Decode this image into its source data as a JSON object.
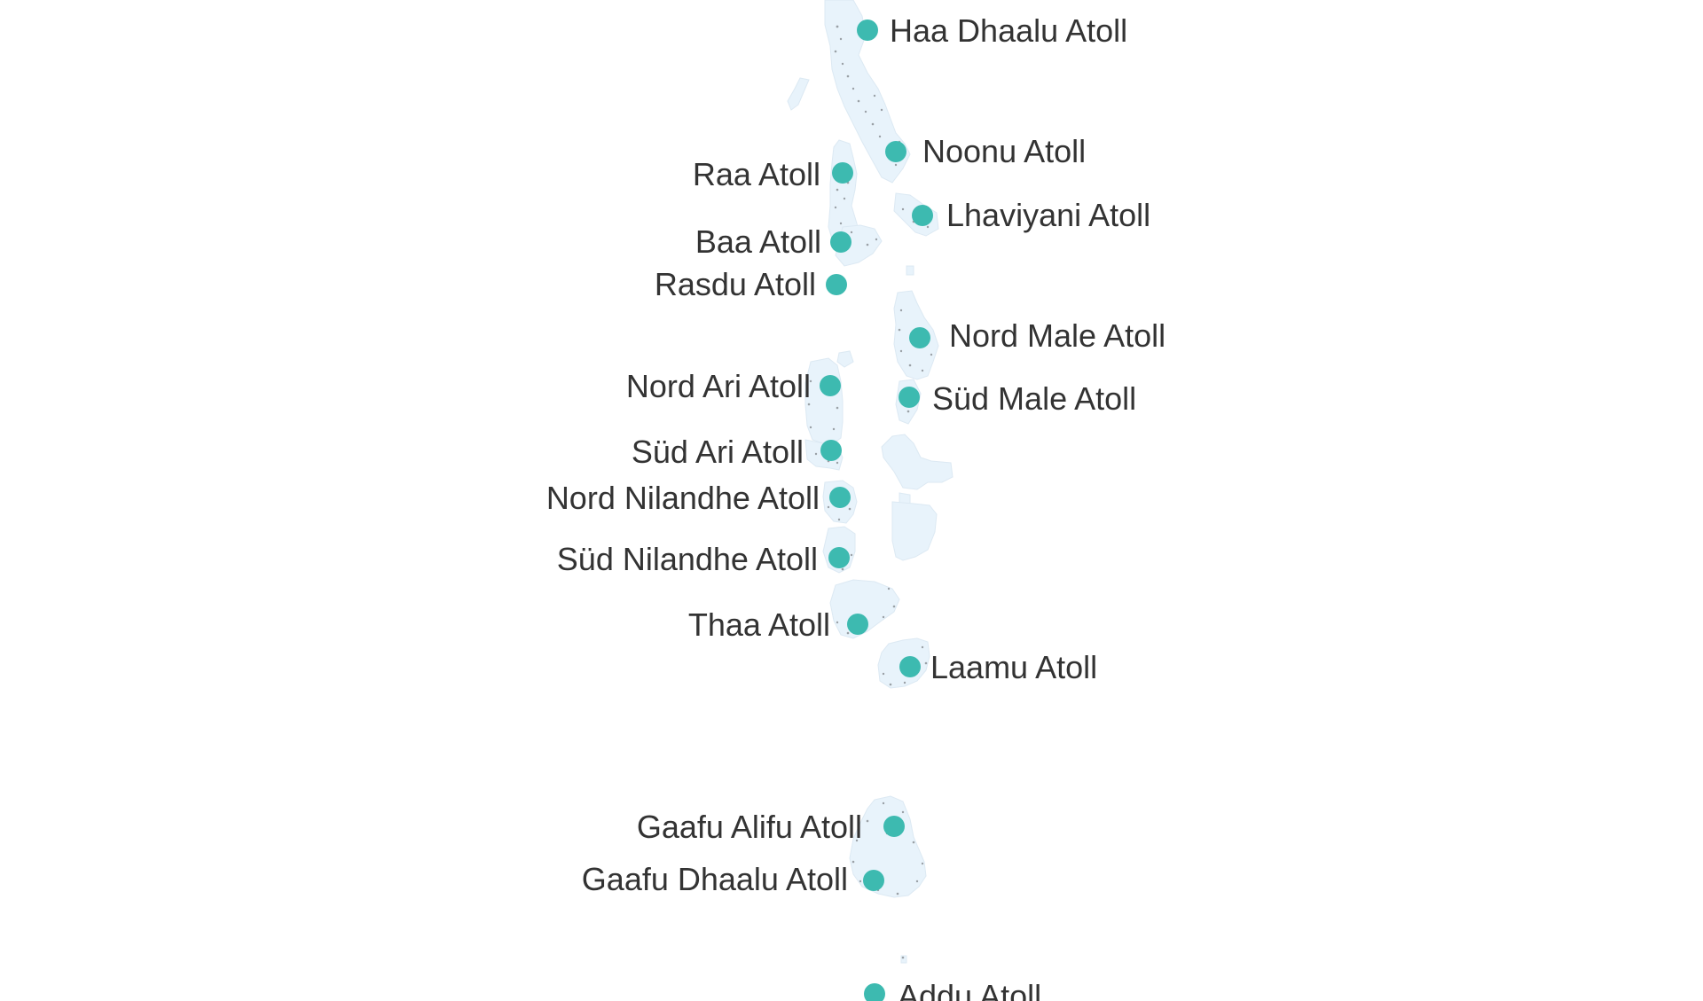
{
  "map": {
    "colors": {
      "land": "#e8f3fb",
      "marker": "#3dbab0",
      "label": "#333333",
      "background": "#ffffff"
    },
    "atolls": [
      {
        "name": "Haa Dhaalu Atoll"
      },
      {
        "name": "Noonu Atoll"
      },
      {
        "name": "Raa Atoll"
      },
      {
        "name": "Lhaviyani Atoll"
      },
      {
        "name": "Baa Atoll"
      },
      {
        "name": "Rasdu Atoll"
      },
      {
        "name": "Nord Male Atoll"
      },
      {
        "name": "Nord Ari Atoll"
      },
      {
        "name": "Süd Male Atoll"
      },
      {
        "name": "Süd Ari Atoll"
      },
      {
        "name": "Nord Nilandhe Atoll"
      },
      {
        "name": "Süd Nilandhe Atoll"
      },
      {
        "name": "Thaa Atoll"
      },
      {
        "name": "Laamu Atoll"
      },
      {
        "name": "Gaafu Alifu Atoll"
      },
      {
        "name": "Gaafu Dhaalu Atoll"
      },
      {
        "name": "Addu Atoll"
      }
    ]
  }
}
